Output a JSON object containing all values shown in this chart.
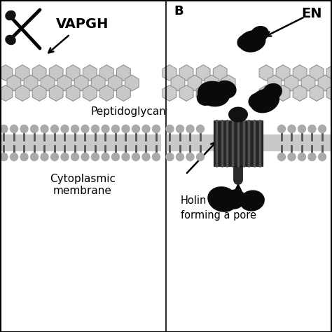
{
  "bg_color": "#ffffff",
  "label_vapgh": "VAPGH",
  "label_b": "B",
  "label_en": "EN",
  "label_peptidoglycan": "Peptidoglycan",
  "label_cytoplasmic": "Cytoplasmic\nmembrane",
  "label_holin": "Holin\nforming a pore",
  "membrane_bead_color": "#aaaaaa",
  "membrane_tail_color": "#555555",
  "peptido_color": "#cccccc",
  "peptido_border": "#888888",
  "holin_color": "#2a2a2a",
  "holin_stripe_color": "#555555",
  "blob_color": "#0d0d0d",
  "divider_color": "#000000",
  "arrow_color": "#000000"
}
